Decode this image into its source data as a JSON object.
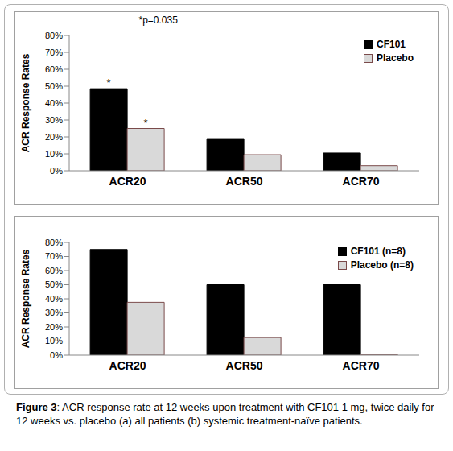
{
  "chart_data": [
    {
      "type": "bar",
      "y_label": "ACR Response Rates",
      "categories": [
        "ACR20",
        "ACR50",
        "ACR70"
      ],
      "series": [
        {
          "name": "CF101",
          "color": "#000000",
          "values": [
            48.5,
            19,
            10.5
          ]
        },
        {
          "name": "Placebo",
          "color": "#d9d9d9",
          "values": [
            25,
            9.5,
            3
          ]
        }
      ],
      "ylim": [
        0,
        80
      ],
      "yticks": [
        {
          "value": 0,
          "label": "0%"
        },
        {
          "value": 10,
          "label": "10%"
        },
        {
          "value": 20,
          "label": "20%"
        },
        {
          "value": 30,
          "label": "30%"
        },
        {
          "value": 40,
          "label": "40%"
        },
        {
          "value": 50,
          "label": "50%"
        },
        {
          "value": 60,
          "label": "60%"
        },
        {
          "value": 70,
          "label": "70%"
        },
        {
          "value": 80,
          "label": "80%"
        }
      ],
      "grid": false,
      "legend": "upper right",
      "annotations": [
        {
          "text": "*",
          "category": "ACR20",
          "series": "CF101"
        },
        {
          "text": "*",
          "category": "ACR20",
          "series": "Placebo"
        },
        {
          "text": "*p=0.035",
          "category": "ACR20",
          "y": 89
        }
      ]
    },
    {
      "type": "bar",
      "y_label": "ACR Response Rates",
      "categories": [
        "ACR20",
        "ACR50",
        "ACR70"
      ],
      "series": [
        {
          "name": "CF101 (n=8)",
          "color": "#000000",
          "values": [
            75,
            50,
            50
          ]
        },
        {
          "name": "Placebo (n=8)",
          "color": "#d9d9d9",
          "values": [
            37.5,
            12.5,
            0.5
          ]
        }
      ],
      "ylim": [
        0,
        80
      ],
      "yticks": [
        {
          "value": 0,
          "label": "0%"
        },
        {
          "value": 10,
          "label": "10%"
        },
        {
          "value": 20,
          "label": "20%"
        },
        {
          "value": 30,
          "label": "30%"
        },
        {
          "value": 40,
          "label": "40%"
        },
        {
          "value": 50,
          "label": "50%"
        },
        {
          "value": 60,
          "label": "60%"
        },
        {
          "value": 70,
          "label": "70%"
        },
        {
          "value": 80,
          "label": "80%"
        }
      ],
      "grid": false,
      "legend": "upper right"
    }
  ],
  "caption": {
    "label": "Figure 3",
    "text": ": ACR response rate at 12 weeks upon treatment with CF101 1 mg, twice daily for 12 weeks vs. placebo (a) all patients (b) systemic treatment-naïve patients."
  }
}
